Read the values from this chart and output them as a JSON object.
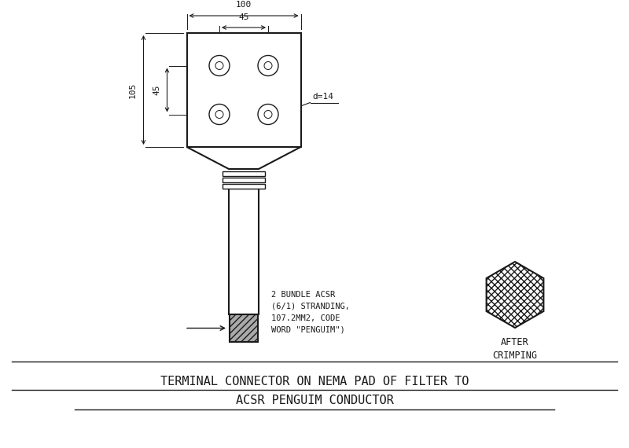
{
  "bg_color": "#ffffff",
  "line_color": "#1a1a1a",
  "title_line1": "TERMINAL CONNECTOR ON NEMA PAD OF FILTER TO",
  "title_line2": "ACSR PENGUIM CONDUCTOR",
  "annotation_text": "2 BUNDLE ACSR\n(6/1) STRANDING,\n107.2MM2, CODE\nWORD \"PENGUIM\")",
  "after_crimping_text": "AFTER\nCRIMPING",
  "dim_100": "100",
  "dim_45_top": "45",
  "dim_105": "105",
  "dim_45_left": "45",
  "dim_d14": "d=14"
}
